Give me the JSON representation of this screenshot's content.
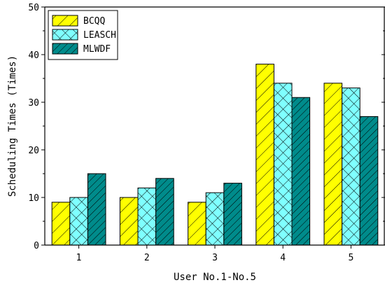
{
  "chart_data": {
    "type": "bar",
    "categories": [
      "1",
      "2",
      "3",
      "4",
      "5"
    ],
    "series": [
      {
        "name": "BCQQ",
        "values": [
          9,
          10,
          9,
          38,
          34
        ],
        "color": "#ffff00",
        "pattern": "diagonal"
      },
      {
        "name": "LEASCH",
        "values": [
          10,
          12,
          11,
          34,
          33
        ],
        "color": "#7fffff",
        "pattern": "cross"
      },
      {
        "name": "MLWDF",
        "values": [
          15,
          14,
          13,
          31,
          27
        ],
        "color": "#008b8b",
        "pattern": "diagonal"
      }
    ],
    "xlabel": "User No.1-No.5",
    "ylabel": "Scheduling Times (Times)",
    "ylim": [
      0,
      50
    ],
    "yticks": [
      0,
      10,
      20,
      30,
      40,
      50
    ],
    "grid": false,
    "legend_position": "top-left"
  }
}
